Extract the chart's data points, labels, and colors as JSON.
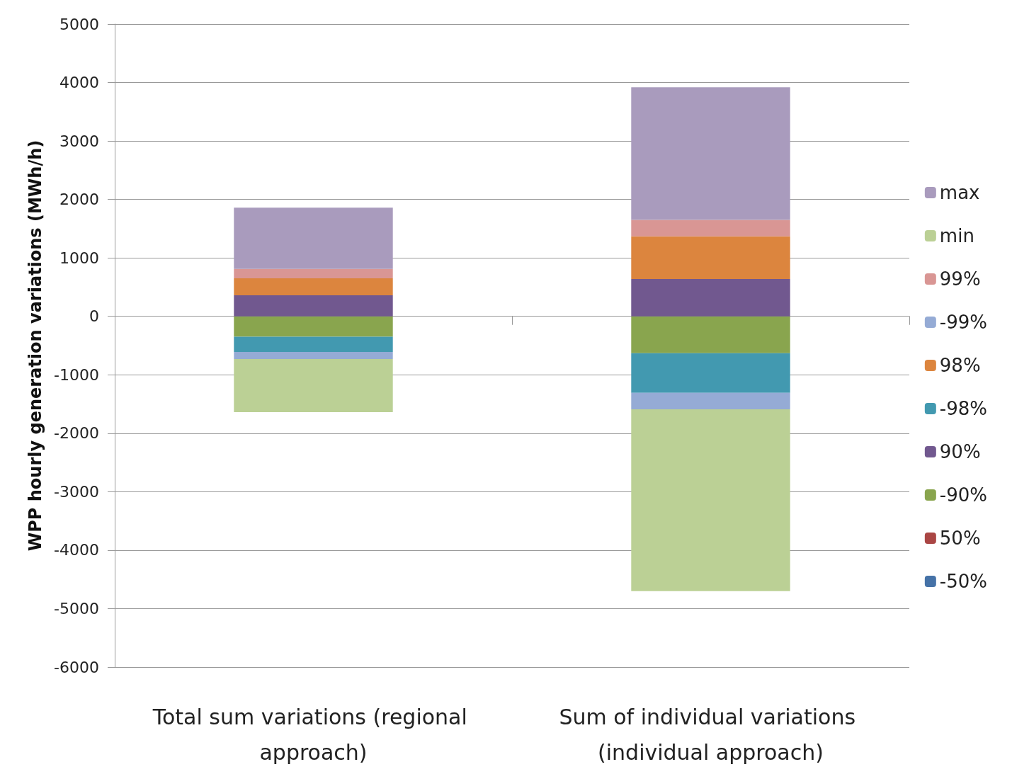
{
  "chart_data": {
    "type": "bar",
    "stacked": true,
    "ylabel": "WPP hourly generation variations (MWh/h)",
    "categories": [
      "Total sum variations (regional approach)",
      "Sum of individual variations (individual approach)"
    ],
    "series": [
      {
        "name": "-50%",
        "color": "#4572a7",
        "values": [
          0,
          0
        ]
      },
      {
        "name": "50%",
        "color": "#aa4644",
        "values": [
          0,
          0
        ]
      },
      {
        "name": "-90%",
        "color": "#89a54e",
        "values": [
          -350,
          -630
        ]
      },
      {
        "name": "90%",
        "color": "#71588f",
        "values": [
          360,
          640
        ]
      },
      {
        "name": "-98%",
        "color": "#4299b0",
        "values": [
          -260,
          -680
        ]
      },
      {
        "name": "98%",
        "color": "#dc853e",
        "values": [
          290,
          730
        ]
      },
      {
        "name": "-99%",
        "color": "#95abd5",
        "values": [
          -120,
          -280
        ]
      },
      {
        "name": "99%",
        "color": "#d99694",
        "values": [
          160,
          280
        ]
      },
      {
        "name": "min",
        "color": "#bbd095",
        "values": [
          -910,
          -3110
        ]
      },
      {
        "name": "max",
        "color": "#a99bbd",
        "values": [
          1050,
          2270
        ]
      }
    ],
    "ylim": [
      -6000,
      5000
    ],
    "yticks": [
      -6000,
      -5000,
      -4000,
      -3000,
      -2000,
      -1000,
      0,
      1000,
      2000,
      3000,
      4000,
      5000
    ],
    "grid": "y",
    "legend": "right"
  }
}
